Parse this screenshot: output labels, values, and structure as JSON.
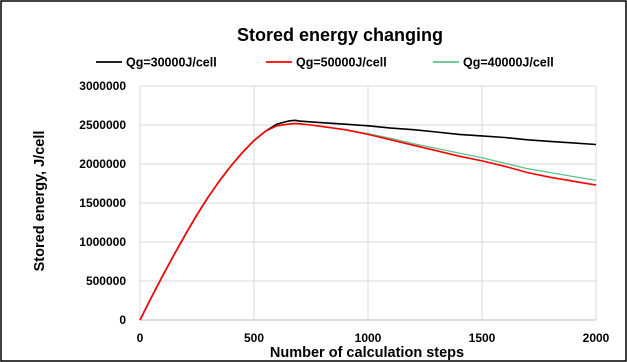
{
  "chart_data": {
    "type": "line",
    "title": "Stored energy changing",
    "xlabel": "Number of calculation steps",
    "ylabel": "Stored energy, J/cell",
    "xlim": [
      0,
      2000
    ],
    "ylim": [
      0,
      3000000
    ],
    "x_ticks": [
      "0",
      "500",
      "1000",
      "1500",
      "2000"
    ],
    "y_ticks": [
      "0",
      "500000",
      "1000000",
      "1500000",
      "2000000",
      "2500000",
      "3000000"
    ],
    "grid": true,
    "legend_position": "top",
    "series": [
      {
        "name": "Qg=30000J/cell",
        "color": "#000000",
        "x": [
          0,
          50,
          100,
          150,
          200,
          250,
          300,
          350,
          400,
          450,
          500,
          550,
          600,
          650,
          680,
          700,
          750,
          800,
          900,
          1000,
          1100,
          1200,
          1300,
          1400,
          1500,
          1600,
          1700,
          1800,
          1900,
          2000
        ],
        "y": [
          0,
          290000,
          570000,
          840000,
          1100000,
          1350000,
          1580000,
          1790000,
          1980000,
          2150000,
          2300000,
          2420000,
          2510000,
          2550000,
          2560000,
          2550000,
          2540000,
          2530000,
          2510000,
          2490000,
          2460000,
          2440000,
          2410000,
          2380000,
          2360000,
          2340000,
          2310000,
          2290000,
          2270000,
          2250000
        ]
      },
      {
        "name": "Qg=50000J/cell",
        "color": "#ff0000",
        "x": [
          0,
          50,
          100,
          150,
          200,
          250,
          300,
          350,
          400,
          450,
          500,
          550,
          600,
          650,
          680,
          700,
          750,
          800,
          900,
          1000,
          1100,
          1200,
          1300,
          1400,
          1500,
          1600,
          1700,
          1800,
          1900,
          2000
        ],
        "y": [
          0,
          290000,
          570000,
          840000,
          1100000,
          1350000,
          1580000,
          1790000,
          1980000,
          2150000,
          2300000,
          2420000,
          2490000,
          2510000,
          2520000,
          2515000,
          2500000,
          2480000,
          2440000,
          2380000,
          2310000,
          2240000,
          2170000,
          2100000,
          2040000,
          1970000,
          1890000,
          1830000,
          1780000,
          1730000
        ]
      },
      {
        "name": "Qg=40000J/cell",
        "color": "#5cc28a",
        "x": [
          0,
          50,
          100,
          150,
          200,
          250,
          300,
          350,
          400,
          450,
          500,
          550,
          600,
          650,
          680,
          700,
          750,
          800,
          900,
          1000,
          1100,
          1200,
          1300,
          1400,
          1500,
          1600,
          1700,
          1800,
          1900,
          2000
        ],
        "y": [
          0,
          290000,
          570000,
          840000,
          1100000,
          1350000,
          1580000,
          1790000,
          1980000,
          2150000,
          2300000,
          2420000,
          2490000,
          2510000,
          2520000,
          2515000,
          2500000,
          2480000,
          2440000,
          2390000,
          2330000,
          2260000,
          2200000,
          2140000,
          2080000,
          2010000,
          1940000,
          1890000,
          1840000,
          1790000
        ]
      }
    ]
  }
}
